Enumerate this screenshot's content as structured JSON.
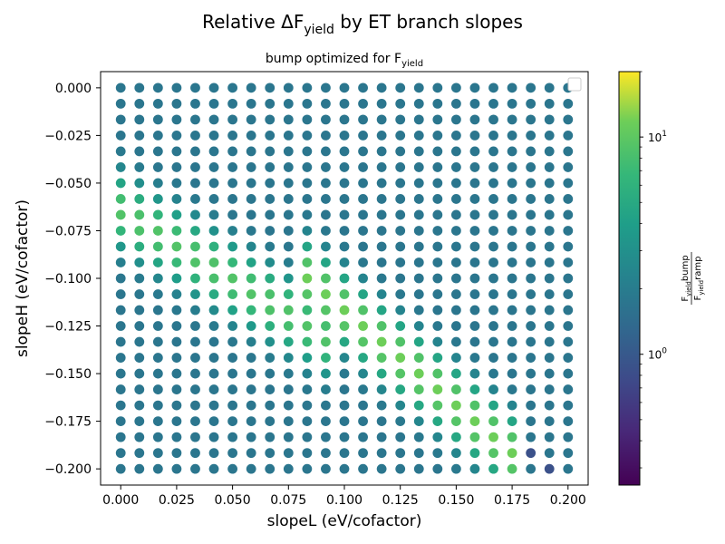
{
  "chart_data": {
    "type": "scatter",
    "title": {
      "main": "Relative ΔF",
      "sub": "yield",
      "tail": " by ET branch slopes"
    },
    "subtitle": {
      "main": "bump optimized for F",
      "sub": "yield"
    },
    "xlabel": "slopeL (eV/cofactor)",
    "ylabel": "slopeH (eV/cofactor)",
    "xlim": [
      -0.009,
      0.209
    ],
    "ylim": [
      -0.2085,
      0.0085
    ],
    "x_ticks": [
      "0.000",
      "0.025",
      "0.050",
      "0.075",
      "0.100",
      "0.125",
      "0.150",
      "0.175",
      "0.200"
    ],
    "y_ticks": [
      "0.000",
      "−0.025",
      "−0.050",
      "−0.075",
      "−0.100",
      "−0.125",
      "−0.150",
      "−0.175",
      "−0.200"
    ],
    "grid": false,
    "legend": "top-right (empty)",
    "x_values": {
      "start": 0.0,
      "stop": 0.2,
      "count": 25
    },
    "y_values": {
      "start": 0.0,
      "stop": -0.2,
      "count": 25
    },
    "value_model": {
      "description": "color value = F_yield bump / F_yield ramp on 25x25 grid of (slopeL, slopeH)",
      "background": 1.4,
      "ridge_1": {
        "x_range": [
          0.0,
          0.092
        ],
        "center_slope": -0.72,
        "center_intercept": -0.065,
        "peak": 6.0
      },
      "ridge_2": {
        "x_range": [
          0.083,
          0.183
        ],
        "center_slope": -1.0,
        "center_intercept": -0.017,
        "peak": 7.5
      },
      "low_points": [
        {
          "x": 0.183,
          "y": -0.192,
          "value": 0.75
        },
        {
          "x": 0.192,
          "y": -0.2,
          "value": 0.75
        }
      ]
    },
    "colorbar": {
      "colormap": "viridis",
      "scale": "log",
      "vmin": 0.25,
      "vmax": 20,
      "ticks": [
        {
          "base": "10",
          "exp": "0",
          "value": 1
        },
        {
          "base": "10",
          "exp": "1",
          "value": 10
        }
      ],
      "label": {
        "num_sub": "yield",
        "num_tail": "bump",
        "den_sub": "yield",
        "den_tail": "ramp",
        "prefix": "F"
      }
    }
  }
}
